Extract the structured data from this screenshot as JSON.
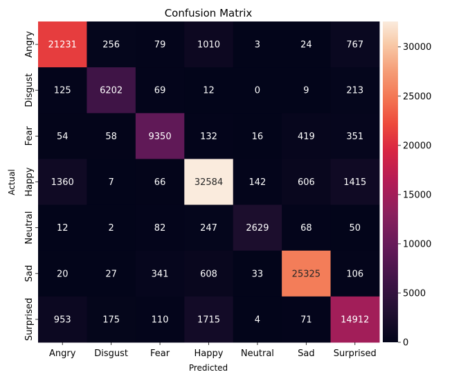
{
  "chart_data": {
    "type": "heatmap",
    "title": "Confusion Matrix",
    "xlabel": "Predicted",
    "ylabel": "Actual",
    "x_categories": [
      "Angry",
      "Disgust",
      "Fear",
      "Happy",
      "Neutral",
      "Sad",
      "Surprised"
    ],
    "y_categories": [
      "Angry",
      "Disgust",
      "Fear",
      "Happy",
      "Neutral",
      "Sad",
      "Surprised"
    ],
    "values": [
      [
        21231,
        256,
        79,
        1010,
        3,
        24,
        767
      ],
      [
        125,
        6202,
        69,
        12,
        0,
        9,
        213
      ],
      [
        54,
        58,
        9350,
        132,
        16,
        419,
        351
      ],
      [
        1360,
        7,
        66,
        32584,
        142,
        606,
        1415
      ],
      [
        12,
        2,
        82,
        247,
        2629,
        68,
        50
      ],
      [
        20,
        27,
        341,
        608,
        33,
        25325,
        106
      ],
      [
        953,
        175,
        110,
        1715,
        4,
        71,
        14912
      ]
    ],
    "colorbar": {
      "range": [
        0,
        32584
      ],
      "ticks": [
        0,
        5000,
        10000,
        15000,
        20000,
        25000,
        30000
      ],
      "colormap": "rocket"
    },
    "grid": false
  }
}
